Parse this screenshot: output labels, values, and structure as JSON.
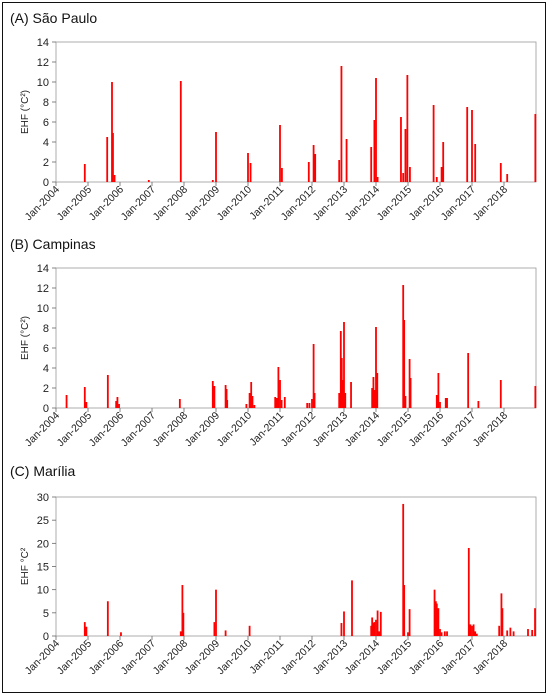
{
  "chart_data": [
    {
      "type": "bar",
      "panel_label": "(A) São Paulo",
      "ylabel": "EHF (°C²)",
      "xlabel": "",
      "ylim": [
        0,
        14
      ],
      "yticks": [
        0,
        2,
        4,
        6,
        8,
        10,
        12,
        14
      ],
      "xlim": [
        2004.0,
        2019.0
      ],
      "xtick_labels": [
        "Jan-2004",
        "Jan-2005",
        "Jan-2006",
        "Jan-2007",
        "Jan-2008",
        "Jan-2009",
        "Jan-2010",
        "Jan-2011",
        "Jan-2012",
        "Jan-2013",
        "Jan-2014",
        "Jan-2015",
        "Jan-2016",
        "Jan-2017",
        "Jan-2018"
      ],
      "bar_color": "#ff0000",
      "grid": false,
      "events": [
        {
          "x": 2004.9,
          "y": 1.8
        },
        {
          "x": 2005.6,
          "y": 4.5
        },
        {
          "x": 2005.75,
          "y": 10.0
        },
        {
          "x": 2005.78,
          "y": 4.9
        },
        {
          "x": 2005.83,
          "y": 0.7
        },
        {
          "x": 2006.9,
          "y": 0.2
        },
        {
          "x": 2007.9,
          "y": 10.1
        },
        {
          "x": 2008.9,
          "y": 0.2
        },
        {
          "x": 2009.0,
          "y": 5.0
        },
        {
          "x": 2010.0,
          "y": 2.9
        },
        {
          "x": 2010.08,
          "y": 1.9
        },
        {
          "x": 2011.0,
          "y": 5.7
        },
        {
          "x": 2011.06,
          "y": 1.4
        },
        {
          "x": 2011.9,
          "y": 2.0
        },
        {
          "x": 2012.05,
          "y": 3.7
        },
        {
          "x": 2012.1,
          "y": 2.8
        },
        {
          "x": 2012.85,
          "y": 2.2
        },
        {
          "x": 2012.92,
          "y": 11.6
        },
        {
          "x": 2013.08,
          "y": 4.3
        },
        {
          "x": 2013.85,
          "y": 3.5
        },
        {
          "x": 2013.95,
          "y": 6.2
        },
        {
          "x": 2014.0,
          "y": 10.4
        },
        {
          "x": 2014.05,
          "y": 0.5
        },
        {
          "x": 2014.78,
          "y": 6.5
        },
        {
          "x": 2014.85,
          "y": 0.9
        },
        {
          "x": 2014.92,
          "y": 5.3
        },
        {
          "x": 2014.98,
          "y": 10.7
        },
        {
          "x": 2015.06,
          "y": 1.5
        },
        {
          "x": 2015.8,
          "y": 7.7
        },
        {
          "x": 2015.9,
          "y": 0.5
        },
        {
          "x": 2016.05,
          "y": 1.5
        },
        {
          "x": 2016.1,
          "y": 4.0
        },
        {
          "x": 2016.85,
          "y": 7.5
        },
        {
          "x": 2017.0,
          "y": 7.2
        },
        {
          "x": 2017.1,
          "y": 3.8
        },
        {
          "x": 2017.9,
          "y": 1.9
        },
        {
          "x": 2018.1,
          "y": 0.8
        },
        {
          "x": 2018.98,
          "y": 6.8
        }
      ]
    },
    {
      "type": "bar",
      "panel_label": "(B) Campinas",
      "ylabel": "EHF (°C²)",
      "xlabel": "",
      "ylim": [
        0,
        14
      ],
      "yticks": [
        0,
        2,
        4,
        6,
        8,
        10,
        12,
        14
      ],
      "xlim": [
        2004.0,
        2019.0
      ],
      "xtick_labels": [
        "Jan-2004",
        "Jan-2005",
        "Jan-2006",
        "Jan-2007",
        "Jan-2008",
        "Jan-2009",
        "Jan-2010",
        "Jan-2011",
        "Jan-2012",
        "Jan-2013",
        "Jan-2014",
        "Jan-2015",
        "Jan-2016",
        "Jan-2017",
        "Jan-2018"
      ],
      "bar_color": "#ff0000",
      "grid": false,
      "events": [
        {
          "x": 2004.33,
          "y": 1.3
        },
        {
          "x": 2004.9,
          "y": 2.1
        },
        {
          "x": 2004.95,
          "y": 0.6
        },
        {
          "x": 2005.62,
          "y": 3.3
        },
        {
          "x": 2005.88,
          "y": 0.7
        },
        {
          "x": 2005.92,
          "y": 1.1
        },
        {
          "x": 2005.97,
          "y": 0.4
        },
        {
          "x": 2007.87,
          "y": 0.9
        },
        {
          "x": 2008.9,
          "y": 2.7
        },
        {
          "x": 2008.95,
          "y": 2.2
        },
        {
          "x": 2009.3,
          "y": 2.3
        },
        {
          "x": 2009.33,
          "y": 1.9
        },
        {
          "x": 2009.35,
          "y": 0.8
        },
        {
          "x": 2009.95,
          "y": 0.4
        },
        {
          "x": 2010.05,
          "y": 1.5
        },
        {
          "x": 2010.1,
          "y": 2.6
        },
        {
          "x": 2010.14,
          "y": 1.2
        },
        {
          "x": 2010.2,
          "y": 0.3
        },
        {
          "x": 2010.85,
          "y": 1.1
        },
        {
          "x": 2010.9,
          "y": 1.0
        },
        {
          "x": 2010.95,
          "y": 4.1
        },
        {
          "x": 2011.0,
          "y": 2.8
        },
        {
          "x": 2011.05,
          "y": 0.8
        },
        {
          "x": 2011.15,
          "y": 1.1
        },
        {
          "x": 2011.85,
          "y": 0.5
        },
        {
          "x": 2011.92,
          "y": 0.5
        },
        {
          "x": 2012.0,
          "y": 0.9
        },
        {
          "x": 2012.05,
          "y": 6.4
        },
        {
          "x": 2012.08,
          "y": 1.5
        },
        {
          "x": 2012.85,
          "y": 1.5
        },
        {
          "x": 2012.9,
          "y": 7.7
        },
        {
          "x": 2012.93,
          "y": 5.0
        },
        {
          "x": 2012.97,
          "y": 2.8
        },
        {
          "x": 2013.0,
          "y": 8.6
        },
        {
          "x": 2013.04,
          "y": 1.5
        },
        {
          "x": 2013.22,
          "y": 2.6
        },
        {
          "x": 2013.88,
          "y": 2.0
        },
        {
          "x": 2013.92,
          "y": 3.1
        },
        {
          "x": 2013.96,
          "y": 1.8
        },
        {
          "x": 2014.0,
          "y": 8.1
        },
        {
          "x": 2014.04,
          "y": 3.5
        },
        {
          "x": 2014.85,
          "y": 12.3
        },
        {
          "x": 2014.88,
          "y": 8.8
        },
        {
          "x": 2014.92,
          "y": 1.2
        },
        {
          "x": 2015.05,
          "y": 4.9
        },
        {
          "x": 2015.08,
          "y": 3.0
        },
        {
          "x": 2015.9,
          "y": 1.3
        },
        {
          "x": 2015.95,
          "y": 3.5
        },
        {
          "x": 2016.0,
          "y": 0.6
        },
        {
          "x": 2016.18,
          "y": 1.0
        },
        {
          "x": 2016.22,
          "y": 1.0
        },
        {
          "x": 2016.88,
          "y": 5.5
        },
        {
          "x": 2017.2,
          "y": 0.7
        },
        {
          "x": 2017.9,
          "y": 2.8
        },
        {
          "x": 2018.98,
          "y": 2.2
        }
      ]
    },
    {
      "type": "bar",
      "panel_label": "(C) Marília",
      "ylabel": "EHF °C²",
      "xlabel": "",
      "ylim": [
        0,
        30
      ],
      "yticks": [
        0,
        5,
        10,
        15,
        20,
        25,
        30
      ],
      "xlim": [
        2004.0,
        2019.0
      ],
      "xtick_labels": [
        "Jan-2004",
        "Jan-2005",
        "Jan-2006",
        "Jan-2007",
        "Jan-2008",
        "Jan-2009",
        "Jan-2010",
        "Jan-2011",
        "Jan-2012",
        "Jan-2013",
        "Jan-2014",
        "Jan-2015",
        "Jan-2016",
        "Jan-2017",
        "Jan-2018"
      ],
      "bar_color": "#ff0000",
      "grid": false,
      "events": [
        {
          "x": 2004.9,
          "y": 3.0
        },
        {
          "x": 2004.95,
          "y": 2.0
        },
        {
          "x": 2005.62,
          "y": 7.5
        },
        {
          "x": 2006.03,
          "y": 0.8
        },
        {
          "x": 2007.9,
          "y": 1.0
        },
        {
          "x": 2007.95,
          "y": 11.0
        },
        {
          "x": 2007.98,
          "y": 5.0
        },
        {
          "x": 2008.95,
          "y": 3.0
        },
        {
          "x": 2009.0,
          "y": 10.0
        },
        {
          "x": 2009.3,
          "y": 1.2
        },
        {
          "x": 2010.05,
          "y": 2.2
        },
        {
          "x": 2012.92,
          "y": 2.8
        },
        {
          "x": 2013.0,
          "y": 5.3
        },
        {
          "x": 2013.25,
          "y": 12.0
        },
        {
          "x": 2013.85,
          "y": 2.2
        },
        {
          "x": 2013.88,
          "y": 4.0
        },
        {
          "x": 2013.92,
          "y": 2.8
        },
        {
          "x": 2013.95,
          "y": 3.0
        },
        {
          "x": 2014.0,
          "y": 3.5
        },
        {
          "x": 2014.05,
          "y": 5.5
        },
        {
          "x": 2014.1,
          "y": 1.0
        },
        {
          "x": 2014.15,
          "y": 5.2
        },
        {
          "x": 2014.85,
          "y": 28.5
        },
        {
          "x": 2014.88,
          "y": 11.0
        },
        {
          "x": 2015.0,
          "y": 0.8
        },
        {
          "x": 2015.05,
          "y": 5.8
        },
        {
          "x": 2015.83,
          "y": 10.0
        },
        {
          "x": 2015.87,
          "y": 7.5
        },
        {
          "x": 2015.9,
          "y": 7.0
        },
        {
          "x": 2015.95,
          "y": 6.0
        },
        {
          "x": 2016.0,
          "y": 1.5
        },
        {
          "x": 2016.05,
          "y": 0.8
        },
        {
          "x": 2016.15,
          "y": 1.0
        },
        {
          "x": 2016.22,
          "y": 1.0
        },
        {
          "x": 2016.9,
          "y": 19.0
        },
        {
          "x": 2016.95,
          "y": 2.5
        },
        {
          "x": 2017.0,
          "y": 2.2
        },
        {
          "x": 2017.05,
          "y": 2.5
        },
        {
          "x": 2017.1,
          "y": 1.0
        },
        {
          "x": 2017.15,
          "y": 0.5
        },
        {
          "x": 2017.85,
          "y": 2.2
        },
        {
          "x": 2017.92,
          "y": 9.2
        },
        {
          "x": 2017.95,
          "y": 6.0
        },
        {
          "x": 2018.1,
          "y": 1.2
        },
        {
          "x": 2018.2,
          "y": 1.8
        },
        {
          "x": 2018.3,
          "y": 1.0
        },
        {
          "x": 2018.75,
          "y": 1.5
        },
        {
          "x": 2018.88,
          "y": 1.3
        },
        {
          "x": 2018.97,
          "y": 6.0
        }
      ]
    }
  ]
}
